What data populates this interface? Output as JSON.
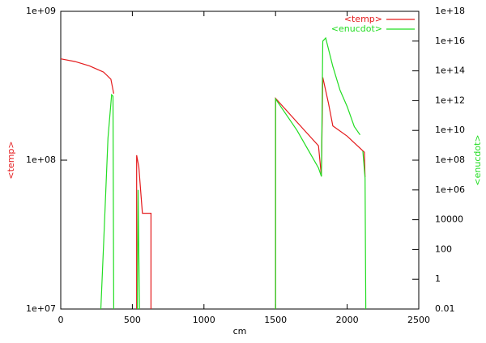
{
  "chart_data": {
    "type": "line",
    "xlabel": "cm",
    "ylabel": "<temp>",
    "y2label": "<enucdot>",
    "xlim": [
      0,
      2500
    ],
    "xticks": [
      0,
      500,
      1000,
      1500,
      2000,
      2500
    ],
    "ylim": [
      10000000,
      1000000000
    ],
    "ylog": true,
    "yticks": [
      {
        "value": 10000000,
        "label": "1e+07"
      },
      {
        "value": 100000000,
        "label": "1e+08"
      },
      {
        "value": 1000000000,
        "label": "1e+09"
      }
    ],
    "y2lim": [
      0.01,
      1e+18
    ],
    "y2log": true,
    "y2ticks": [
      0.01,
      1,
      100,
      10000,
      {
        "value": 1000000,
        "label": "1e+06"
      },
      {
        "value": 100000000,
        "label": "1e+08"
      },
      {
        "value": 10000000000,
        "label": "1e+10"
      },
      {
        "value": 1000000000000,
        "label": "1e+12"
      },
      {
        "value": 100000000000000,
        "label": "1e+14"
      },
      {
        "value": 10000000000000000,
        "label": "1e+16"
      },
      {
        "value": 1000000000000000000,
        "label": "1e+18"
      }
    ],
    "legend": "top-right",
    "series": [
      {
        "name": "<temp>",
        "color": "#e41a1c",
        "x": [
          0,
          100,
          200,
          300,
          350,
          370,
          null,
          530,
          530,
          545,
          570,
          630,
          630,
          null,
          1500,
          1500,
          1650,
          1800,
          1820,
          1830,
          1870,
          1900,
          2000,
          2120,
          2125
        ],
        "values": [
          480000000,
          460000000,
          430000000,
          390000000,
          350000000,
          280000000,
          null,
          10000000,
          108000000,
          90000000,
          44000000,
          44000000,
          10000000,
          null,
          10000000,
          260000000,
          180000000,
          125000000,
          78000000,
          360000000,
          240000000,
          170000000,
          145000000,
          113000000,
          77000000
        ]
      },
      {
        "name": "<enucdot>",
        "color": "#22dd22",
        "axis": "y2",
        "x": [
          280,
          300,
          330,
          355,
          365,
          370,
          null,
          535,
          540,
          550,
          null,
          1500,
          1500,
          1650,
          1800,
          1820,
          1830,
          1850,
          1900,
          1950,
          2000,
          2050,
          2090,
          null,
          2110,
          2125,
          2130
        ],
        "values": [
          0.01,
          300,
          3000000000,
          2500000000000,
          2000000000000,
          0.01,
          null,
          0.01,
          1000000,
          0.01,
          null,
          0.01,
          1300000000000,
          10000000000,
          30000000,
          8000000,
          10000000000000000,
          16000000000000000,
          200000000000000,
          5000000000000,
          400000000000,
          18000000000,
          5000000000,
          null,
          400000000,
          6000000,
          0.01
        ]
      }
    ]
  }
}
